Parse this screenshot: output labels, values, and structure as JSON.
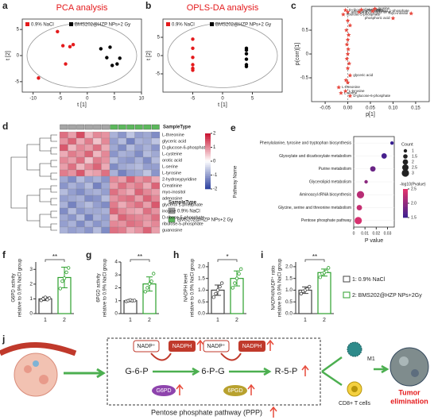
{
  "chart_data": [
    {
      "label": "a",
      "type": "scatter",
      "title": "PCA analysis",
      "xlabel": "t [1]",
      "ylabel": "t [2]",
      "ellipse": true,
      "xlim": [
        -12,
        10
      ],
      "xticks": [
        -10,
        -5,
        0,
        5,
        10
      ],
      "ylim": [
        -7,
        7
      ],
      "yticks": [
        -5,
        0,
        5
      ],
      "series": [
        {
          "name": "0.9% NaCl",
          "color": "#e41a1c",
          "x": [
            -5.5,
            -4.5,
            -3.2,
            -2.6,
            -4.0,
            -9.0
          ],
          "y": [
            4.6,
            1.9,
            1.7,
            2.1,
            -1.6,
            -4.3
          ]
        },
        {
          "name": "BMS202@HZP NPs+2 Gy",
          "color": "#000000",
          "x": [
            2.5,
            4.2,
            3.6,
            6.0,
            5.5,
            4.6
          ],
          "y": [
            1.3,
            1.6,
            -0.4,
            -0.5,
            -1.6,
            -1.9
          ]
        }
      ]
    },
    {
      "label": "b",
      "type": "scatter",
      "title": "OPLS-DA analysis",
      "xlabel": "t [1]",
      "ylabel": "t [2]",
      "ellipse": true,
      "xlim": [
        -10,
        10
      ],
      "xticks": [
        -5,
        0,
        5
      ],
      "ylim": [
        -10,
        10
      ],
      "yticks": [
        -5,
        0,
        5
      ],
      "series": [
        {
          "name": "0.9% NaCl",
          "color": "#e41a1c",
          "x": [
            -5,
            -5,
            -5,
            -5,
            -5,
            -5
          ],
          "y": [
            4.5,
            2,
            -0.5,
            -2.5,
            -3.5,
            -4
          ]
        },
        {
          "name": "BMS202@HZP NPs+2 Gy",
          "color": "#000000",
          "x": [
            4,
            4,
            4,
            4,
            4,
            4
          ],
          "y": [
            2,
            1.5,
            0.5,
            -1,
            -2.5,
            -3
          ]
        }
      ]
    },
    {
      "label": "c",
      "type": "scatter",
      "marker": "star",
      "xlabel": "p[1]",
      "ylabel": "p(corr)[1]",
      "xlim": [
        -0.08,
        0.18
      ],
      "xticks": [
        -0.05,
        {
          "value": 0,
          "label": "0.00"
        },
        0.05,
        {
          "value": 0.1,
          "label": "0.10"
        },
        0.15
      ],
      "ylim": [
        -1,
        1
      ],
      "yticks": [
        -0.5,
        0,
        0.5
      ],
      "series": [
        {
          "color": "#e8493f",
          "x": [
            -0.005,
            0.0,
            -0.01,
            0.03,
            0.025,
            0.06,
            0.055,
            0.14,
            0.1,
            0.0,
            0.005,
            -0.003,
            0.002,
            0.0,
            -0.002,
            0.001,
            0.0,
            -0.002,
            0.003,
            0.0,
            0.005,
            -0.004,
            -0.02,
            -0.005,
            -0.015,
            0.005,
            0.0
          ],
          "y": [
            0.92,
            0.88,
            0.83,
            0.93,
            0.88,
            0.95,
            0.9,
            0.85,
            0.75,
            0.7,
            0.6,
            0.5,
            0.4,
            0.3,
            0.2,
            0.1,
            0.0,
            -0.1,
            -0.2,
            -0.3,
            -0.45,
            -0.55,
            -0.7,
            -0.78,
            -0.82,
            -0.88,
            -0.6
          ],
          "labels": [
            "D-ribose-5-phosphate",
            "adenosine",
            "ribulose-5-phosphate",
            "Creatinine",
            "2-hydroxypyridine",
            "inosine",
            "glycerol 1-phosphate",
            "myo-inositol",
            "phosphoric acid",
            null,
            null,
            null,
            null,
            null,
            null,
            null,
            null,
            null,
            null,
            null,
            "glyceric acid",
            null,
            "L-threonine",
            "L-tyrosine",
            "L-serine",
            "D-glucose-6-phosphate",
            null
          ]
        }
      ]
    },
    {
      "label": "d",
      "type": "heatmap",
      "legend_title": "SampleType",
      "colors": [
        "#2b3f9e",
        "#ffffff",
        "#c8102e"
      ],
      "colorbar_ticks": [
        -2,
        -1,
        0,
        1,
        2
      ],
      "groups": [
        {
          "name": "0.9% NaCl",
          "color": "#a6a6a6"
        },
        {
          "name": "BMS202@HZP NPs+2 Gy",
          "color": "#5cb85c"
        }
      ],
      "rows": [
        "L-threonine",
        "glyceric acid",
        "D-glucose-6-phosphate",
        "L-cysteine",
        "orotic acid",
        "L-serine",
        "L-tyrosine",
        "2-hydroxypyridine",
        "Creatinine",
        "myo-inositol",
        "adenosine",
        "glycerol 1-phosphate",
        "inosine",
        "D-ribose-5-phosphate",
        "ribulose-5-phosphate",
        "guanosine"
      ],
      "values": [
        [
          1.2,
          0.8,
          1.5,
          0.6,
          1.0,
          0.9,
          -0.8,
          -1.1,
          -0.6,
          -1.0,
          -0.9,
          -1.2
        ],
        [
          0.9,
          1.3,
          0.7,
          1.1,
          0.5,
          1.0,
          -1.0,
          -0.7,
          -1.3,
          -0.8,
          -0.9,
          -0.6
        ],
        [
          1.4,
          0.6,
          1.0,
          0.8,
          1.2,
          0.7,
          -0.9,
          -1.2,
          -0.7,
          -1.0,
          -0.8,
          -1.1
        ],
        [
          0.7,
          1.1,
          0.9,
          1.3,
          0.6,
          1.0,
          -1.1,
          -0.8,
          -0.9,
          -1.2,
          -0.7,
          -0.9
        ],
        [
          1.0,
          0.8,
          1.2,
          0.5,
          1.1,
          0.9,
          -0.7,
          -1.0,
          -1.1,
          -0.8,
          -1.2,
          -0.7
        ],
        [
          0.8,
          1.2,
          0.6,
          1.0,
          1.3,
          0.7,
          -1.2,
          -0.9,
          -0.8,
          -0.7,
          -1.0,
          -1.0
        ],
        [
          1.1,
          0.9,
          1.4,
          0.7,
          0.8,
          1.2,
          -0.8,
          -1.3,
          -1.0,
          -0.9,
          -0.6,
          -1.1
        ],
        [
          -0.9,
          -1.2,
          -0.7,
          -1.0,
          -0.8,
          -1.1,
          1.0,
          0.8,
          1.3,
          0.9,
          1.1,
          0.7
        ],
        [
          -1.1,
          -0.8,
          -1.0,
          -0.7,
          -1.3,
          -0.9,
          0.8,
          1.2,
          0.9,
          1.1,
          0.7,
          1.3
        ],
        [
          -0.7,
          -1.0,
          -1.2,
          -0.9,
          -0.8,
          -1.0,
          1.2,
          0.9,
          0.7,
          1.3,
          1.0,
          0.8
        ],
        [
          -1.0,
          -0.9,
          -0.8,
          -1.2,
          -1.1,
          -0.7,
          0.9,
          1.1,
          1.2,
          0.8,
          1.3,
          1.0
        ],
        [
          -0.8,
          -1.3,
          -0.9,
          -0.7,
          -1.0,
          -1.2,
          1.1,
          0.7,
          1.0,
          1.2,
          0.8,
          1.4
        ],
        [
          -1.2,
          -0.7,
          -1.1,
          -0.9,
          -0.9,
          -0.8,
          1.3,
          1.0,
          0.8,
          0.7,
          1.2,
          0.9
        ],
        [
          -0.9,
          -1.1,
          -0.7,
          -1.3,
          -0.8,
          -1.0,
          0.7,
          1.3,
          1.1,
          1.0,
          0.9,
          1.2
        ],
        [
          -1.0,
          -0.8,
          -1.2,
          -0.8,
          -1.1,
          -0.9,
          1.0,
          0.9,
          1.2,
          1.1,
          0.8,
          1.0
        ],
        [
          -0.8,
          -1.0,
          -0.9,
          -1.1,
          -0.7,
          -1.2,
          1.2,
          1.1,
          0.7,
          0.9,
          1.3,
          0.8
        ]
      ]
    },
    {
      "label": "e",
      "type": "bubble",
      "xlabel": "P value",
      "ylabel": "Pathway Name",
      "xlim": [
        0,
        0.036
      ],
      "xticks": [
        0,
        0.01,
        0.02,
        0.03
      ],
      "categories": [
        "Phenylalanine, tyrosine and tryptophan biosynthesis",
        "Glyoxylate and dicarboxylate metabolism",
        "Purine metabolism",
        "Glycerolipid metabolism",
        "Aminoacyl-tRNA biosynthesis",
        "Glycine, serine and threonine metabolism",
        "Pentose phosphate pathway"
      ],
      "values": [
        0.034,
        0.027,
        0.017,
        0.011,
        0.006,
        0.005,
        0.004
      ],
      "sizes": [
        1,
        2,
        2,
        1,
        3,
        2,
        3
      ],
      "size_title": "Count",
      "size_ticks": [
        1,
        1.5,
        2,
        2.5,
        3
      ],
      "color_title": "-log10(Pvalue)",
      "colors": [
        "#3b1f8f",
        "#e8336b"
      ],
      "color_ticks": [
        {
          "value": 1.5,
          "label": "1.5"
        },
        {
          "value": 2,
          "label": "2.0"
        },
        {
          "value": 2.5,
          "label": "2.5"
        }
      ]
    },
    {
      "label": "f",
      "type": "bar",
      "ylabel": [
        "G6PD activity",
        "relative to 0.9% NaCl group"
      ],
      "categories": [
        "1",
        "2"
      ],
      "colors": [
        "#444444",
        "#2ca02c"
      ],
      "ylim": [
        0,
        3.5
      ],
      "yticks": [
        0,
        1,
        2,
        3
      ],
      "values": [
        1.0,
        2.45
      ],
      "errors": [
        0.12,
        0.7
      ],
      "significance": "**",
      "points": [
        [
          0.9,
          1.0,
          1.1,
          0.95,
          1.05
        ],
        [
          1.7,
          2.2,
          2.4,
          2.8,
          3.1
        ]
      ]
    },
    {
      "label": "g",
      "type": "bar",
      "ylabel": [
        "6PGD activity",
        "relative to 0.9% NaCl group"
      ],
      "categories": [
        "1",
        "2"
      ],
      "colors": [
        "#444444",
        "#2ca02c"
      ],
      "ylim": [
        0,
        4
      ],
      "yticks": [
        0,
        1,
        2,
        3,
        4
      ],
      "values": [
        1.0,
        2.3
      ],
      "errors": [
        0.08,
        0.55
      ],
      "significance": "**",
      "points": [
        [
          0.95,
          1.0,
          1.05,
          1.0,
          1.02
        ],
        [
          1.7,
          2.0,
          2.3,
          2.5,
          3.1
        ]
      ]
    },
    {
      "label": "h",
      "type": "bar",
      "ylabel": [
        "NADPH level",
        "relative to 0.9% NaCl group"
      ],
      "categories": [
        "1",
        "2"
      ],
      "colors": [
        "#444444",
        "#2ca02c"
      ],
      "ylim": [
        0,
        2.2
      ],
      "yticks": [
        {
          "value": 0,
          "label": "0.0"
        },
        0.5,
        {
          "value": 1,
          "label": "1.0"
        },
        1.5,
        {
          "value": 2,
          "label": "2.0"
        }
      ],
      "values": [
        1.0,
        1.5
      ],
      "errors": [
        0.22,
        0.32
      ],
      "significance": "*",
      "points": [
        [
          0.7,
          0.85,
          1.0,
          1.15,
          1.3
        ],
        [
          1.1,
          1.3,
          1.5,
          1.7,
          1.9
        ]
      ]
    },
    {
      "label": "i",
      "type": "bar",
      "ylabel": [
        "NADPH/NADP⁺ ratio",
        "relative to 0.9% NaCl group"
      ],
      "categories": [
        "1",
        "2"
      ],
      "colors": [
        "#444444",
        "#2ca02c"
      ],
      "ylim": [
        0,
        2.2
      ],
      "yticks": [
        {
          "value": 0,
          "label": "0.0"
        },
        0.5,
        {
          "value": 1,
          "label": "1.0"
        },
        1.5,
        {
          "value": 2,
          "label": "2.0"
        }
      ],
      "values": [
        1.0,
        1.75
      ],
      "errors": [
        0.14,
        0.15
      ],
      "significance": "**",
      "points": [
        [
          0.85,
          0.95,
          1.0,
          1.05,
          1.15
        ],
        [
          1.55,
          1.7,
          1.75,
          1.8,
          1.95
        ]
      ],
      "legend": [
        "1: 0.9% NaCl",
        "2: BMS202@HZP NPs+2Gy"
      ]
    }
  ],
  "diagram": {
    "label": "j",
    "nadp_1": "NADP⁺",
    "nadph_1": "NADPH",
    "nadp_2": "NADP⁺",
    "nadph_2": "NADPH",
    "g6p": "G-6-P",
    "pg6": "6-P-G",
    "r5p": "R-5-P",
    "enzyme_1": "G6PD",
    "enzyme_2": "6PGD",
    "pathway": "Pentose phosphate pathway (PPP)",
    "m1": "M1",
    "t_cells": "CD8+ T cells",
    "outcome_1": "Tumor",
    "outcome_2": "elimination"
  }
}
